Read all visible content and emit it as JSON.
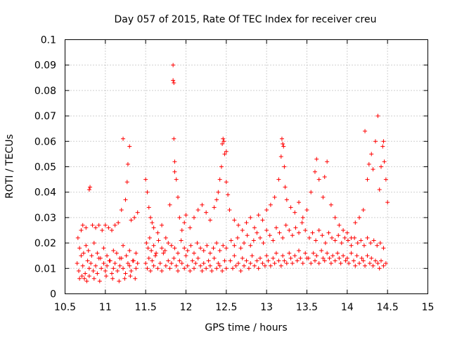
{
  "chart_data": {
    "type": "scatter",
    "title": "Day 057 of 2015, Rate Of TEC Index for receiver creu",
    "xlabel": "GPS time / hours",
    "ylabel": "ROTI / TECUs",
    "xlim": [
      10.5,
      15
    ],
    "ylim": [
      0,
      0.1
    ],
    "x_ticks": [
      "10.5",
      "11",
      "11.5",
      "12",
      "12.5",
      "13",
      "13.5",
      "14",
      "14.5",
      "15"
    ],
    "y_ticks": [
      "0",
      "0.01",
      "0.02",
      "0.03",
      "0.04",
      "0.05",
      "0.06",
      "0.07",
      "0.08",
      "0.09",
      "0.1"
    ],
    "grid": true,
    "marker": "+",
    "color": "#ff0000",
    "series": [
      {
        "name": "ROTI",
        "x": [
          10.65,
          10.67,
          10.7,
          10.72,
          10.75,
          10.78,
          10.8,
          10.82,
          10.85,
          10.88,
          10.9,
          10.92,
          10.95,
          10.98,
          11.0,
          11.02,
          11.05,
          11.08,
          11.1,
          11.12,
          11.15,
          11.18,
          11.2,
          11.22,
          11.25,
          11.28,
          11.3,
          11.32,
          11.35,
          11.38,
          11.4,
          10.66,
          10.68,
          10.7,
          10.73,
          10.76,
          10.79,
          10.83,
          10.86,
          10.9,
          10.94,
          10.98,
          11.02,
          11.06,
          11.1,
          11.14,
          11.18,
          11.22,
          11.26,
          11.3,
          11.34,
          11.38,
          10.72,
          10.76,
          10.8,
          10.81,
          10.84,
          10.88,
          10.92,
          10.96,
          11.0,
          11.04,
          11.08,
          11.12,
          11.16,
          11.2,
          11.22,
          11.25,
          11.27,
          11.28,
          11.3,
          11.32,
          11.36,
          11.4,
          10.68,
          10.71,
          10.74,
          10.77,
          10.8,
          10.86,
          10.93,
          11.01,
          11.09,
          11.17,
          11.24,
          11.31,
          11.37,
          11.5,
          11.52,
          11.54,
          11.56,
          11.58,
          11.6,
          11.62,
          11.65,
          11.68,
          11.7,
          11.72,
          11.75,
          11.78,
          11.8,
          11.82,
          11.85,
          11.88,
          11.9,
          11.92,
          11.95,
          11.98,
          12.0,
          12.02,
          12.05,
          12.08,
          12.1,
          12.12,
          12.15,
          12.18,
          12.2,
          12.22,
          12.25,
          12.28,
          12.3,
          12.32,
          12.35,
          12.38,
          12.4,
          12.42,
          12.45,
          12.48,
          12.5,
          11.51,
          11.53,
          11.55,
          11.57,
          11.6,
          11.63,
          11.66,
          11.7,
          11.74,
          11.78,
          11.82,
          11.86,
          11.9,
          11.94,
          11.98,
          12.02,
          12.06,
          12.1,
          12.14,
          12.18,
          12.22,
          12.26,
          12.3,
          12.34,
          12.38,
          12.42,
          12.46,
          12.5,
          11.5,
          11.52,
          11.54,
          11.56,
          11.58,
          11.6,
          11.65,
          11.7,
          11.75,
          11.8,
          11.84,
          11.84,
          11.85,
          11.85,
          11.86,
          11.86,
          11.88,
          11.9,
          11.92,
          11.95,
          11.98,
          12.0,
          12.05,
          12.1,
          12.15,
          12.2,
          12.25,
          12.3,
          12.35,
          12.38,
          12.4,
          12.42,
          12.44,
          12.45,
          12.46,
          12.47,
          12.48,
          12.5,
          12.5,
          12.52,
          12.54,
          12.55,
          12.58,
          12.6,
          12.62,
          12.65,
          12.68,
          12.7,
          12.72,
          12.75,
          12.78,
          12.8,
          12.82,
          12.85,
          12.88,
          12.9,
          12.92,
          12.95,
          12.98,
          13.0,
          13.02,
          13.05,
          13.08,
          13.1,
          13.12,
          13.15,
          13.18,
          13.2,
          13.22,
          13.25,
          13.28,
          13.3,
          13.32,
          13.35,
          13.38,
          13.4,
          13.42,
          13.45,
          13.48,
          13.5,
          12.56,
          12.6,
          12.64,
          12.68,
          12.72,
          12.76,
          12.8,
          12.84,
          12.88,
          12.92,
          12.96,
          13.0,
          13.04,
          13.08,
          13.12,
          13.16,
          13.2,
          13.24,
          13.28,
          13.32,
          13.36,
          13.4,
          13.44,
          13.48,
          12.6,
          12.65,
          12.7,
          12.75,
          12.8,
          12.85,
          12.9,
          12.95,
          13.0,
          13.05,
          13.1,
          13.15,
          13.18,
          13.19,
          13.2,
          13.21,
          13.22,
          13.23,
          13.25,
          13.3,
          13.35,
          13.4,
          13.45,
          13.5,
          13.52,
          13.55,
          13.58,
          13.6,
          13.62,
          13.65,
          13.68,
          13.7,
          13.72,
          13.75,
          13.78,
          13.8,
          13.82,
          13.85,
          13.88,
          13.9,
          13.92,
          13.95,
          13.98,
          14.0,
          14.02,
          14.05,
          14.08,
          14.1,
          14.12,
          14.15,
          14.18,
          14.2,
          14.22,
          14.25,
          14.28,
          14.3,
          14.32,
          14.35,
          14.38,
          14.4,
          14.42,
          14.45,
          14.48,
          13.53,
          13.57,
          13.61,
          13.65,
          13.69,
          13.73,
          13.77,
          13.81,
          13.85,
          13.89,
          13.93,
          13.97,
          14.01,
          14.05,
          14.09,
          14.13,
          14.17,
          14.21,
          14.25,
          14.29,
          14.33,
          14.37,
          14.41,
          14.45,
          13.55,
          13.6,
          13.62,
          13.65,
          13.7,
          13.72,
          13.75,
          13.8,
          13.85,
          13.9,
          13.95,
          14.0,
          14.05,
          14.1,
          14.15,
          14.2,
          14.22,
          14.25,
          14.27,
          14.3,
          14.32,
          14.35,
          14.38,
          14.4,
          14.42,
          14.44,
          14.45,
          14.46,
          14.48,
          14.5
        ],
        "y": [
          0.012,
          0.009,
          0.015,
          0.011,
          0.008,
          0.013,
          0.01,
          0.012,
          0.009,
          0.011,
          0.008,
          0.014,
          0.01,
          0.012,
          0.009,
          0.011,
          0.013,
          0.008,
          0.01,
          0.012,
          0.009,
          0.011,
          0.014,
          0.01,
          0.008,
          0.012,
          0.011,
          0.009,
          0.013,
          0.01,
          0.012,
          0.022,
          0.018,
          0.025,
          0.016,
          0.019,
          0.017,
          0.015,
          0.02,
          0.016,
          0.014,
          0.018,
          0.015,
          0.013,
          0.017,
          0.016,
          0.014,
          0.019,
          0.015,
          0.017,
          0.013,
          0.016,
          0.027,
          0.026,
          0.041,
          0.042,
          0.027,
          0.026,
          0.027,
          0.025,
          0.027,
          0.026,
          0.025,
          0.027,
          0.028,
          0.033,
          0.061,
          0.037,
          0.044,
          0.051,
          0.058,
          0.029,
          0.03,
          0.032,
          0.006,
          0.007,
          0.006,
          0.005,
          0.007,
          0.006,
          0.005,
          0.007,
          0.006,
          0.005,
          0.006,
          0.007,
          0.006,
          0.012,
          0.01,
          0.014,
          0.009,
          0.013,
          0.011,
          0.015,
          0.01,
          0.012,
          0.009,
          0.016,
          0.011,
          0.013,
          0.01,
          0.012,
          0.014,
          0.011,
          0.009,
          0.013,
          0.012,
          0.01,
          0.015,
          0.011,
          0.009,
          0.013,
          0.01,
          0.012,
          0.014,
          0.011,
          0.009,
          0.012,
          0.01,
          0.013,
          0.011,
          0.009,
          0.014,
          0.01,
          0.012,
          0.011,
          0.009,
          0.013,
          0.01,
          0.02,
          0.018,
          0.022,
          0.017,
          0.019,
          0.016,
          0.021,
          0.018,
          0.017,
          0.02,
          0.019,
          0.018,
          0.016,
          0.021,
          0.018,
          0.017,
          0.019,
          0.016,
          0.02,
          0.018,
          0.017,
          0.019,
          0.016,
          0.018,
          0.02,
          0.017,
          0.019,
          0.018,
          0.045,
          0.04,
          0.034,
          0.03,
          0.028,
          0.026,
          0.024,
          0.027,
          0.022,
          0.035,
          0.084,
          0.09,
          0.083,
          0.061,
          0.048,
          0.052,
          0.045,
          0.038,
          0.03,
          0.025,
          0.028,
          0.031,
          0.026,
          0.03,
          0.033,
          0.035,
          0.032,
          0.029,
          0.034,
          0.037,
          0.04,
          0.045,
          0.05,
          0.059,
          0.061,
          0.06,
          0.055,
          0.056,
          0.044,
          0.039,
          0.033,
          0.013,
          0.01,
          0.015,
          0.011,
          0.012,
          0.009,
          0.014,
          0.011,
          0.013,
          0.01,
          0.012,
          0.015,
          0.011,
          0.013,
          0.01,
          0.014,
          0.012,
          0.011,
          0.015,
          0.013,
          0.011,
          0.014,
          0.012,
          0.016,
          0.013,
          0.011,
          0.015,
          0.013,
          0.012,
          0.016,
          0.014,
          0.012,
          0.015,
          0.013,
          0.017,
          0.014,
          0.012,
          0.016,
          0.014,
          0.021,
          0.019,
          0.022,
          0.018,
          0.02,
          0.023,
          0.019,
          0.021,
          0.024,
          0.022,
          0.02,
          0.025,
          0.023,
          0.021,
          0.026,
          0.024,
          0.022,
          0.027,
          0.025,
          0.023,
          0.026,
          0.024,
          0.028,
          0.025,
          0.029,
          0.027,
          0.025,
          0.028,
          0.03,
          0.026,
          0.031,
          0.029,
          0.033,
          0.035,
          0.038,
          0.045,
          0.054,
          0.061,
          0.059,
          0.058,
          0.05,
          0.042,
          0.037,
          0.034,
          0.032,
          0.036,
          0.03,
          0.033,
          0.014,
          0.012,
          0.016,
          0.013,
          0.015,
          0.012,
          0.017,
          0.014,
          0.013,
          0.016,
          0.014,
          0.012,
          0.015,
          0.013,
          0.016,
          0.014,
          0.012,
          0.015,
          0.013,
          0.014,
          0.012,
          0.016,
          0.013,
          0.011,
          0.015,
          0.012,
          0.014,
          0.013,
          0.011,
          0.015,
          0.012,
          0.014,
          0.011,
          0.013,
          0.012,
          0.01,
          0.013,
          0.011,
          0.012,
          0.022,
          0.024,
          0.021,
          0.025,
          0.023,
          0.02,
          0.024,
          0.022,
          0.021,
          0.023,
          0.02,
          0.022,
          0.021,
          0.019,
          0.022,
          0.02,
          0.021,
          0.019,
          0.022,
          0.02,
          0.021,
          0.019,
          0.02,
          0.018,
          0.04,
          0.048,
          0.053,
          0.045,
          0.038,
          0.046,
          0.052,
          0.035,
          0.03,
          0.027,
          0.025,
          0.024,
          0.022,
          0.028,
          0.03,
          0.033,
          0.064,
          0.045,
          0.051,
          0.055,
          0.049,
          0.06,
          0.07,
          0.041,
          0.05,
          0.058,
          0.06,
          0.052,
          0.045,
          0.036
        ]
      }
    ]
  }
}
